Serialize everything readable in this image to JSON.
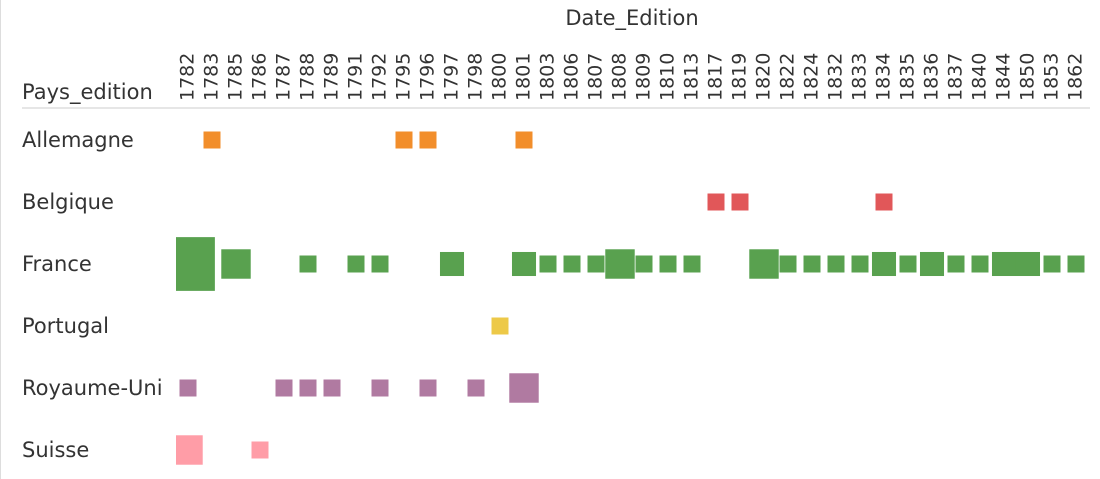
{
  "chart_data": {
    "type": "square",
    "x_label": "Date_Edition",
    "y_label": "Pays_edition",
    "categories": [
      "1782",
      "1783",
      "1785",
      "1786",
      "1787",
      "1788",
      "1789",
      "1791",
      "1792",
      "1795",
      "1796",
      "1797",
      "1798",
      "1800",
      "1801",
      "1803",
      "1806",
      "1807",
      "1808",
      "1809",
      "1810",
      "1813",
      "1817",
      "1819",
      "1820",
      "1822",
      "1824",
      "1832",
      "1833",
      "1834",
      "1835",
      "1836",
      "1837",
      "1840",
      "1844",
      "1850",
      "1853",
      "1862"
    ],
    "series": [
      {
        "name": "Allemagne",
        "color": "#f28e2b",
        "values": [
          null,
          1,
          null,
          null,
          null,
          null,
          null,
          null,
          null,
          1,
          1,
          null,
          null,
          null,
          1,
          null,
          null,
          null,
          null,
          null,
          null,
          null,
          null,
          null,
          null,
          null,
          null,
          null,
          null,
          null,
          null,
          null,
          null,
          null,
          null,
          null,
          null,
          null
        ]
      },
      {
        "name": "Belgique",
        "color": "#e15759",
        "values": [
          null,
          null,
          null,
          null,
          null,
          null,
          null,
          null,
          null,
          null,
          null,
          null,
          null,
          null,
          null,
          null,
          null,
          null,
          null,
          null,
          null,
          null,
          1,
          1,
          null,
          null,
          null,
          null,
          null,
          1,
          null,
          null,
          null,
          null,
          null,
          null,
          null,
          null
        ]
      },
      {
        "name": "France",
        "color": "#59a14f",
        "values": [
          10,
          null,
          3,
          null,
          null,
          1,
          null,
          1,
          1,
          null,
          null,
          2,
          null,
          null,
          2,
          1,
          1,
          1,
          3,
          1,
          1,
          1,
          null,
          null,
          3,
          1,
          1,
          1,
          1,
          2,
          1,
          2,
          1,
          1,
          2,
          2,
          1,
          1
        ]
      },
      {
        "name": "Portugal",
        "color": "#edc948",
        "values": [
          null,
          null,
          null,
          null,
          null,
          null,
          null,
          null,
          null,
          null,
          null,
          null,
          null,
          1,
          null,
          null,
          null,
          null,
          null,
          null,
          null,
          null,
          null,
          null,
          null,
          null,
          null,
          null,
          null,
          null,
          null,
          null,
          null,
          null,
          null,
          null,
          null,
          null
        ]
      },
      {
        "name": "Royaume-Uni",
        "color": "#b07aa1",
        "values": [
          1,
          null,
          null,
          null,
          1,
          1,
          1,
          null,
          1,
          null,
          1,
          null,
          1,
          null,
          3,
          null,
          null,
          null,
          null,
          null,
          null,
          null,
          null,
          null,
          null,
          null,
          null,
          null,
          null,
          null,
          null,
          null,
          null,
          null,
          null,
          null,
          null,
          null
        ]
      },
      {
        "name": "Suisse",
        "color": "#ff9da7",
        "values": [
          3,
          null,
          null,
          1,
          null,
          null,
          null,
          null,
          null,
          null,
          null,
          null,
          null,
          null,
          null,
          null,
          null,
          null,
          null,
          null,
          null,
          null,
          null,
          null,
          null,
          null,
          null,
          null,
          null,
          null,
          null,
          null,
          null,
          null,
          null,
          null,
          null,
          null
        ]
      }
    ]
  }
}
